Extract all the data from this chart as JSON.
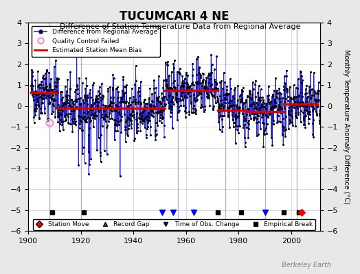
{
  "title": "TUCUMCARI 4 NE",
  "subtitle": "Difference of Station Temperature Data from Regional Average",
  "ylabel_right": "Monthly Temperature Anomaly Difference (°C)",
  "xlim": [
    1900,
    2011
  ],
  "ylim": [
    -6,
    4
  ],
  "yticks": [
    -6,
    -5,
    -4,
    -3,
    -2,
    -1,
    0,
    1,
    2,
    3,
    4
  ],
  "xticks": [
    1900,
    1920,
    1940,
    1960,
    1980,
    2000
  ],
  "bg_color": "#e8e8e8",
  "plot_bg_color": "#ffffff",
  "grid_color": "#cccccc",
  "data_line_color": "#2222cc",
  "data_marker_color": "#000000",
  "bias_line_color": "#dd0000",
  "qc_color": "#ff88cc",
  "vertical_lines": [
    1908,
    1920,
    1957,
    1975,
    1990,
    2002
  ],
  "vertical_line_color": "#aaaadd",
  "bias_segments": [
    {
      "x": [
        1901,
        1911
      ],
      "y": [
        0.65,
        0.65
      ]
    },
    {
      "x": [
        1911,
        1952
      ],
      "y": [
        -0.12,
        -0.12
      ]
    },
    {
      "x": [
        1952,
        1972
      ],
      "y": [
        0.75,
        0.75
      ]
    },
    {
      "x": [
        1972,
        1983
      ],
      "y": [
        -0.22,
        -0.22
      ]
    },
    {
      "x": [
        1983,
        1997
      ],
      "y": [
        -0.28,
        -0.28
      ]
    },
    {
      "x": [
        1997,
        2010
      ],
      "y": [
        0.08,
        0.08
      ]
    }
  ],
  "bottom_markers": {
    "empirical_break": [
      1909,
      1921,
      1972,
      1981,
      1997,
      2003
    ],
    "station_move": [
      2004
    ],
    "time_of_obs": [
      1951,
      1955,
      1963,
      1990
    ],
    "record_gap": []
  },
  "bottom_marker_y": -5.1,
  "watermark": "Berkeley Earth",
  "seed": 42,
  "start_year": 1901,
  "end_year": 2010
}
